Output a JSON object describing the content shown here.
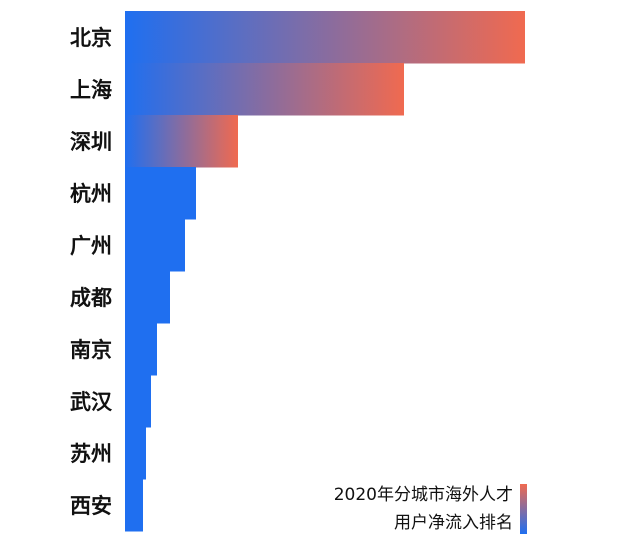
{
  "chart_data": {
    "type": "bar",
    "orientation": "horizontal",
    "categories": [
      "北京",
      "上海",
      "深圳",
      "杭州",
      "广州",
      "成都",
      "南京",
      "武汉",
      "苏州",
      "西安"
    ],
    "values": [
      400,
      279,
      113,
      71,
      60,
      45,
      32,
      26,
      21,
      18
    ],
    "fills": [
      [
        "#1f6ff0",
        "#f06a50"
      ],
      [
        "#1f6ff0",
        "#f06a50"
      ],
      [
        "#1f6ff0",
        "#f06a50"
      ],
      [
        "#1f6ff0",
        "#1f6ff0"
      ],
      [
        "#1f6ff0",
        "#1f6ff0"
      ],
      [
        "#1f6ff0",
        "#1f6ff0"
      ],
      [
        "#1f6ff0",
        "#1f6ff0"
      ],
      [
        "#1f6ff0",
        "#1f6ff0"
      ],
      [
        "#1f6ff0",
        "#1f6ff0"
      ],
      [
        "#1f6ff0",
        "#1f6ff0"
      ]
    ],
    "xlim": [
      0,
      400
    ],
    "legend_title": [
      "2020年分城市海外人才",
      "用户净流入排名"
    ],
    "legend_colors": [
      "#f06a50",
      "#1f6ff0"
    ],
    "legend_position": "lower right"
  }
}
